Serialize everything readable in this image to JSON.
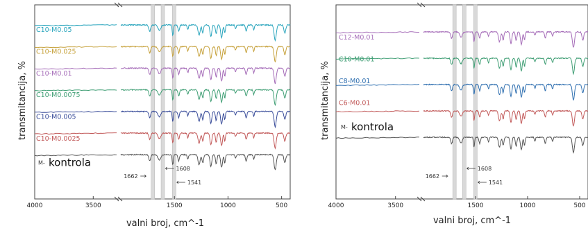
{
  "chart_data": [
    {
      "type": "line",
      "xlabel": "valni broj, cm^-1",
      "ylabel": "transmitancija, %",
      "xlim": [
        4000,
        420
      ],
      "x_reversed": true,
      "x_axis_break": true,
      "xticks": [
        "4000",
        "3500",
        "1500",
        "1000",
        "500"
      ],
      "offset_traces": true,
      "reference_lines": [
        {
          "label": "1662",
          "x": 1662
        },
        {
          "label": "1608",
          "x": 1608
        },
        {
          "label": "1541",
          "x": 1541
        }
      ],
      "series": [
        {
          "name": "C10-M0.05",
          "color": "#2aa5bd"
        },
        {
          "name": "C10-M0.025",
          "color": "#c6a13a"
        },
        {
          "name": "C10-M0.01",
          "color": "#a56cb8"
        },
        {
          "name": "C10-M0.0075",
          "color": "#3f9e74"
        },
        {
          "name": "C10-M0.005",
          "color": "#3a4d9a"
        },
        {
          "name": "C10-M0.0025",
          "color": "#c25a5a"
        },
        {
          "name": "kontrola",
          "prefix": "M-",
          "color": "#555555"
        }
      ]
    },
    {
      "type": "line",
      "xlabel": "valni broj, cm^-1",
      "ylabel": "transmitancija, %",
      "xlim": [
        4000,
        420
      ],
      "x_reversed": true,
      "x_axis_break": true,
      "xticks": [
        "4000",
        "3500",
        "1500",
        "1000",
        "500"
      ],
      "offset_traces": true,
      "reference_lines": [
        {
          "label": "1662",
          "x": 1662
        },
        {
          "label": "1608",
          "x": 1608
        },
        {
          "label": "1541",
          "x": 1541
        }
      ],
      "series": [
        {
          "name": "C12-M0.01",
          "color": "#a56cb8"
        },
        {
          "name": "C10-M0.01",
          "color": "#3f9e74"
        },
        {
          "name": "C8-M0.01",
          "color": "#2f6fb0"
        },
        {
          "name": "C6-M0.01",
          "color": "#c25a5a"
        },
        {
          "name": "kontrola",
          "prefix": "M-",
          "color": "#555555"
        }
      ]
    }
  ]
}
